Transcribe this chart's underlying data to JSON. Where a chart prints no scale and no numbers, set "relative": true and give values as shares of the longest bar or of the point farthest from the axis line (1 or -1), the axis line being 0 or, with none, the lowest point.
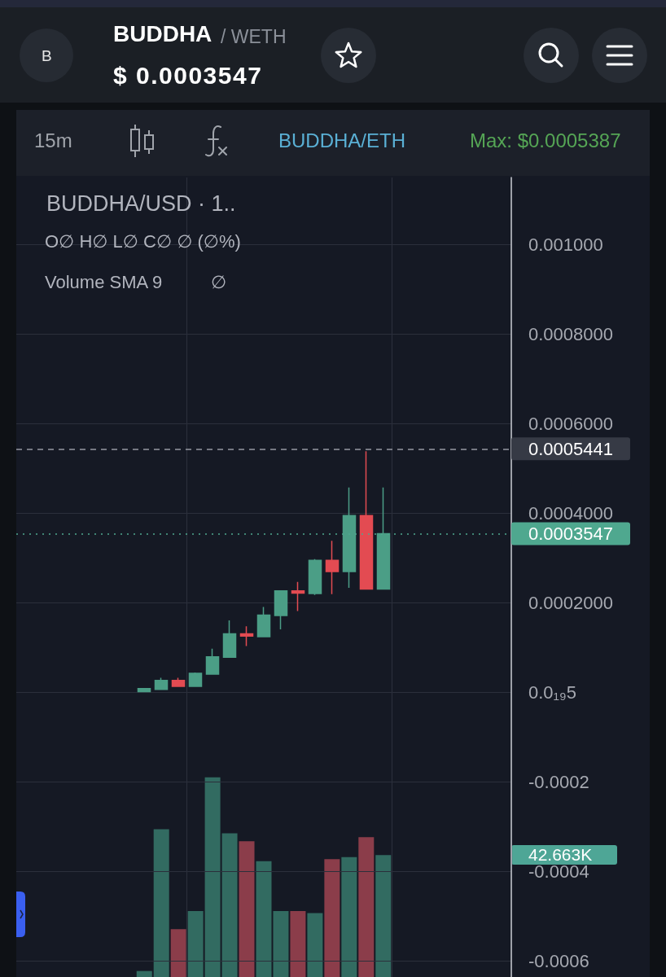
{
  "chart_data": [
    {
      "type": "candlestick",
      "title": "BUDDHA/USD · 1..",
      "annotations": [
        "B",
        "BUDDHA",
        "/ WETH",
        "$ 0.0003547",
        "15m",
        "BUDDHA/ETH",
        "Max: $0.0005387",
        "O∅ H∅ L∅ C∅ ∅ (∅%)"
      ],
      "categories": [
        null,
        null,
        null,
        null,
        null,
        null,
        null,
        null,
        null,
        null,
        null,
        null,
        null,
        null,
        null,
        null,
        null,
        null,
        null,
        null,
        null,
        null,
        null,
        null,
        null,
        null,
        null,
        null,
        null
      ],
      "ohlc": [
        null,
        null,
        null,
        null,
        null,
        null,
        null,
        [
          2e-06,
          9e-06,
          2e-06,
          9e-06
        ],
        [
          7e-06,
          3.3e-05,
          7e-06,
          2.7e-05
        ],
        [
          2.7e-05,
          3.3e-05,
          1.4e-05,
          1.4e-05
        ],
        [
          1.4e-05,
          4.5e-05,
          1.4e-05,
          4.3e-05
        ],
        [
          4.1e-05,
          9.8e-05,
          4.1e-05,
          8e-05
        ],
        [
          7.9e-05,
          0.000161,
          7.9e-05,
          0.000131
        ],
        [
          0.000131,
          0.000148,
          0.000104,
          0.000126
        ],
        [
          0.000125,
          0.000191,
          0.000125,
          0.000173
        ],
        [
          0.000172,
          0.000227,
          0.000141,
          0.000227
        ],
        [
          0.000227,
          0.000247,
          0.000182,
          0.000222
        ],
        [
          0.000221,
          0.000298,
          0.000218,
          0.000295
        ],
        [
          0.000295,
          0.000339,
          0.00022,
          0.00027
        ],
        [
          0.00027,
          0.000458,
          0.000234,
          0.000395
        ],
        [
          0.000395,
          0.000539,
          0.000231,
          0.000231
        ],
        [
          0.000231,
          0.000458,
          0.000231,
          0.0003547
        ],
        null,
        null,
        null,
        null,
        null,
        null,
        null
      ],
      "colors": [
        null,
        null,
        null,
        null,
        null,
        null,
        null,
        "#4b9e86",
        "#4b9e86",
        "#e34b52",
        "#4b9e86",
        "#4b9e86",
        "#4b9e86",
        "#e34b52",
        "#4b9e86",
        "#4b9e86",
        "#e34b52",
        "#4b9e86",
        "#e34b52",
        "#4b9e86",
        "#e34b52",
        "#4b9e86",
        null,
        null,
        null,
        null,
        null,
        null,
        null
      ],
      "ylim": [
        -0.000635,
        0.00115
      ],
      "yticks": [
        -0.0006,
        -0.0004,
        -0.0002,
        {
          "value": 5e-20,
          "label": "0.0₁₉5"
        },
        {
          "value": 0.0002,
          "label": "0.0002000"
        },
        {
          "value": 0.0004,
          "label": "0.0004000"
        },
        {
          "value": 0.0006,
          "label": "0.0006000"
        },
        {
          "value": 0.0008,
          "label": "0.0008000"
        },
        {
          "value": 0.001,
          "label": "0.001000"
        }
      ],
      "ref_lines": [
        {
          "axis": "y",
          "value": 0.0005441,
          "label": "0.0005441",
          "color": "#9598a1",
          "line_style": "dashed"
        },
        {
          "axis": "y",
          "value": 0.0003547,
          "label": "0.0003547",
          "color": "#4fa88f",
          "line_style": "dotted"
        }
      ],
      "grid": true,
      "tick_labels": "y"
    },
    {
      "type": "bar",
      "title": "Volume SMA 9",
      "annotations": [
        "∅",
        "42.663K"
      ],
      "categories": [
        null,
        null,
        null,
        null,
        null,
        null,
        null,
        null,
        null,
        null,
        null,
        null,
        null,
        null,
        null,
        null,
        null,
        null,
        null,
        null,
        null,
        null,
        null,
        null,
        null,
        null,
        null,
        null,
        null
      ],
      "values": [
        null,
        null,
        null,
        null,
        null,
        null,
        null,
        0.03,
        0.74,
        0.24,
        0.33,
        1,
        0.72,
        0.68,
        0.58,
        0.33,
        0.33,
        0.32,
        0.59,
        0.6,
        0.7,
        0.61,
        null,
        null,
        null,
        null,
        null,
        null,
        null
      ],
      "colors": [
        null,
        null,
        null,
        null,
        null,
        null,
        null,
        "#326b61",
        "#326b61",
        "#8b3d4a",
        "#326b61",
        "#326b61",
        "#326b61",
        "#8b3d4a",
        "#326b61",
        "#326b61",
        "#8b3d4a",
        "#326b61",
        "#8b3d4a",
        "#326b61",
        "#8b3d4a",
        "#326b61",
        null,
        null,
        null,
        null,
        null,
        null,
        null
      ],
      "relative": true,
      "tick_labels": false
    }
  ]
}
